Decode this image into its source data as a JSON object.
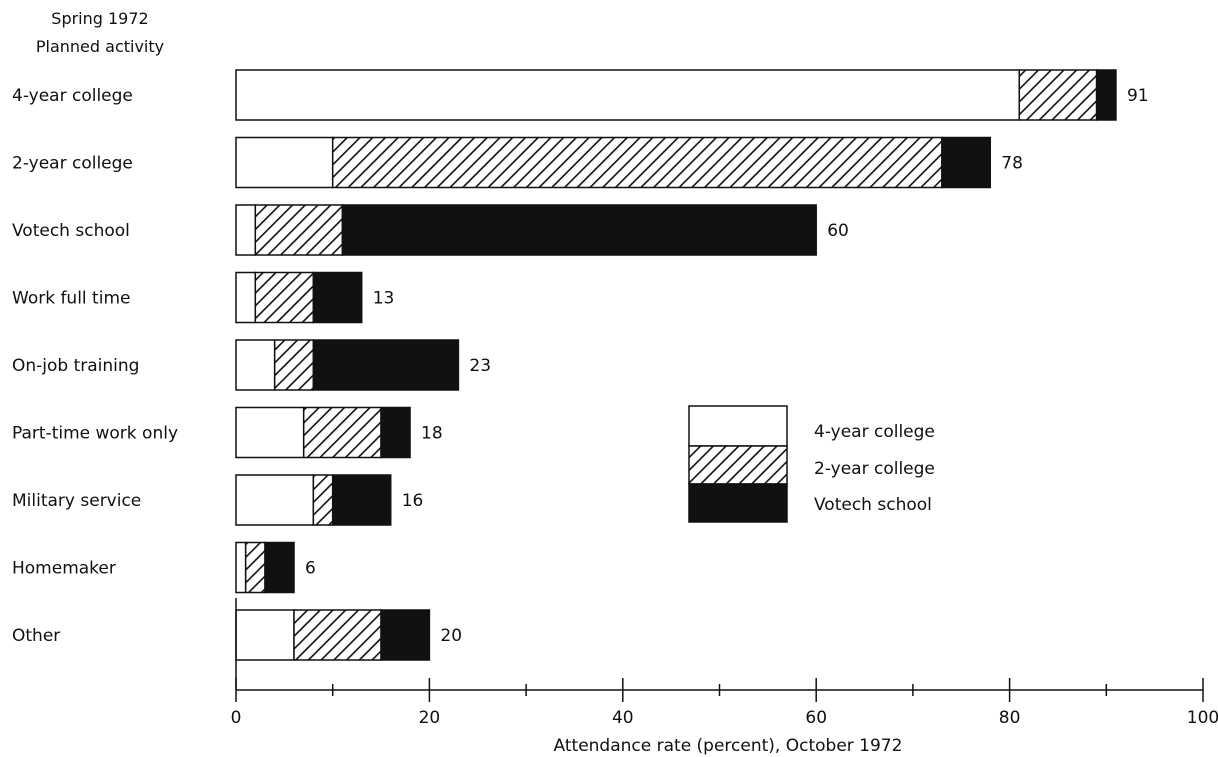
{
  "chart_data": {
    "type": "bar",
    "orientation": "horizontal",
    "stacked": true,
    "ylabel_line1": "Spring 1972",
    "ylabel_line2": "Planned activity",
    "xlabel": "Attendance rate (percent), October 1972",
    "xlim": [
      0,
      100
    ],
    "x_ticks": [
      0,
      20,
      40,
      60,
      80,
      100
    ],
    "x_minor_ticks": [
      10,
      30,
      50,
      70,
      90
    ],
    "categories": [
      "4-year college",
      "2-year college",
      "Votech school",
      "Work full time",
      "On-job training",
      "Part-time work only",
      "Military service",
      "Homemaker",
      "Other"
    ],
    "totals": [
      91,
      78,
      60,
      13,
      23,
      18,
      16,
      6,
      20
    ],
    "series": [
      {
        "name": "4-year college",
        "pattern": "white",
        "values": [
          81,
          10,
          2,
          2,
          4,
          7,
          8,
          1,
          6
        ]
      },
      {
        "name": "2-year college",
        "pattern": "hatched",
        "values": [
          8,
          63,
          9,
          6,
          4,
          8,
          2,
          2,
          9
        ]
      },
      {
        "name": "Votech school",
        "pattern": "black",
        "values": [
          2,
          5,
          49,
          5,
          15,
          3,
          6,
          3,
          5
        ]
      }
    ],
    "legend_placement": "center-right",
    "grid": false
  }
}
